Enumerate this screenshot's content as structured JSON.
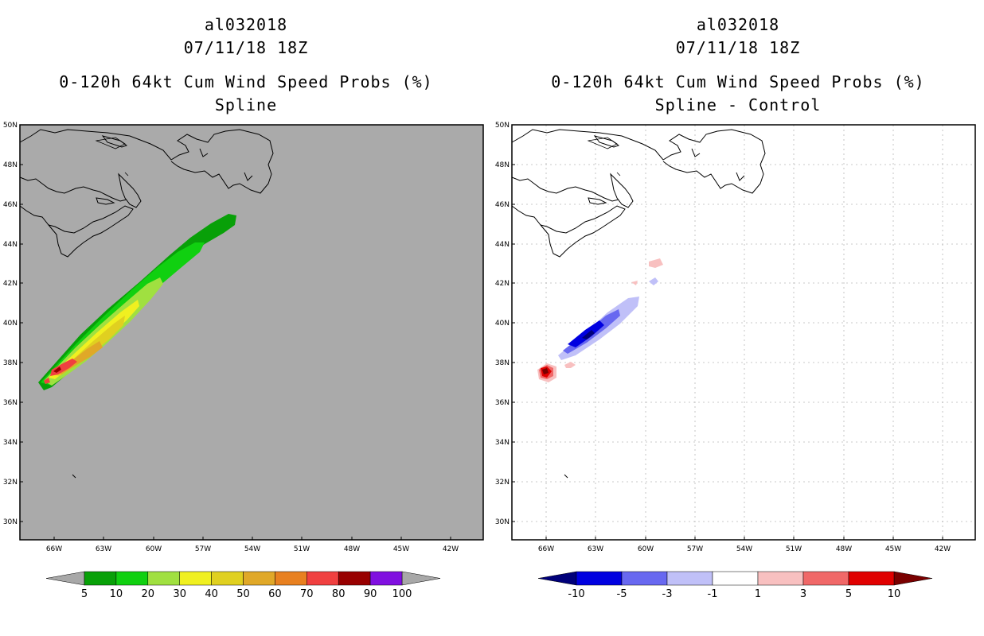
{
  "left_panel": {
    "storm_id": "al032018",
    "datetime": "07/11/18 18Z",
    "product": "0-120h 64kt Cum Wind Speed Probs (%)",
    "subtitle": "Spline",
    "background": "#aaaaaa",
    "colorbar": {
      "labels": [
        "5",
        "10",
        "20",
        "30",
        "40",
        "50",
        "60",
        "70",
        "80",
        "90",
        "100"
      ],
      "under_color": "#a8a8a8",
      "over_color": "#a8a8a8",
      "colors": [
        "#08a008",
        "#10d010",
        "#a0e040",
        "#f0f020",
        "#e0d020",
        "#e0a828",
        "#e88020",
        "#f04040",
        "#980000",
        "#8010e0"
      ]
    }
  },
  "right_panel": {
    "storm_id": "al032018",
    "datetime": "07/11/18 18Z",
    "product": "0-120h 64kt Cum Wind Speed Probs (%)",
    "subtitle": "Spline - Control",
    "background": "#ffffff",
    "colorbar": {
      "labels": [
        "-10",
        "-5",
        "-3",
        "-1",
        "1",
        "3",
        "5",
        "10"
      ],
      "under_color": "#00007a",
      "over_color": "#7a0000",
      "colors": [
        "#0000e0",
        "#6868f0",
        "#c0c0f8",
        "#ffffff",
        "#f8c0c0",
        "#f06868",
        "#e00000"
      ]
    }
  },
  "axes": {
    "lat_labels": [
      "50N",
      "48N",
      "46N",
      "44N",
      "42N",
      "40N",
      "38N",
      "36N",
      "34N",
      "32N",
      "30N"
    ],
    "lon_labels": [
      "66W",
      "63W",
      "60W",
      "57W",
      "54W",
      "51W",
      "48W",
      "45W",
      "42W"
    ]
  }
}
